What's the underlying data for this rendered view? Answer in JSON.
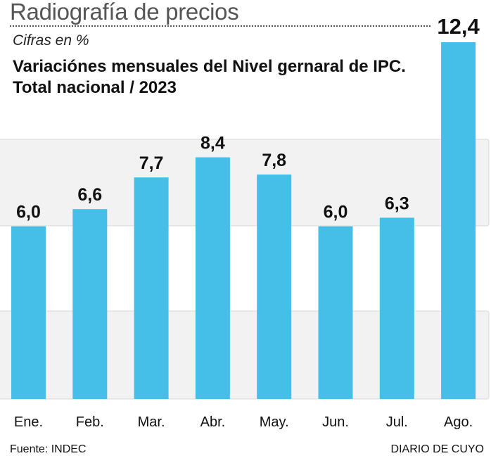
{
  "header": {
    "title": "Radiografía de precios"
  },
  "chart_data": {
    "type": "bar",
    "subtitle": "Cifras en %",
    "title_line1": "Variaciónes mensuales del Nivel gernaral de IPC.",
    "title_line2": "Total nacional / 2023",
    "categories": [
      "Ene.",
      "Feb.",
      "Mar.",
      "Abr.",
      "May.",
      "Jun.",
      "Jul.",
      "Ago."
    ],
    "values": [
      6.0,
      6.6,
      7.7,
      8.4,
      7.8,
      6.0,
      6.3,
      12.4
    ],
    "value_labels": [
      "6,0",
      "6,6",
      "7,7",
      "8,4",
      "7,8",
      "6,0",
      "6,3",
      "12,4"
    ],
    "ylim": [
      0,
      12.4
    ],
    "bar_color": "#45bfe8",
    "band_color": "#f2f2f2"
  },
  "footer": {
    "source": "Fuente: INDEC",
    "brand": "DIARIO DE CUYO"
  }
}
